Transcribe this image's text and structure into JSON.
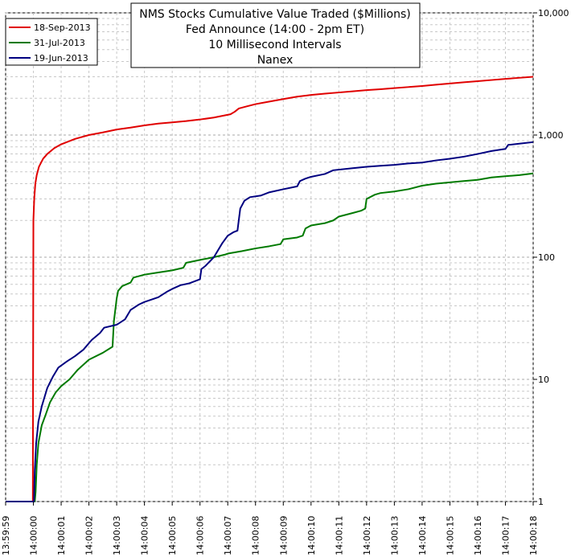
{
  "chart_data": {
    "type": "line",
    "title_lines": [
      "NMS Stocks Cumulative Value Traded ($Millions)",
      "Fed Announce (14:00 - 2pm ET)",
      "10 Millisecond Intervals",
      "Nanex"
    ],
    "y_scale": "log",
    "ylim": [
      1,
      10000
    ],
    "y_tick_labels": [
      "1",
      "10",
      "100",
      "1,000",
      "10,000"
    ],
    "y_tick_values": [
      1,
      10,
      100,
      1000,
      10000
    ],
    "x_tick_labels": [
      "13:59:59",
      "14:00:00",
      "14:00:01",
      "14:00:02",
      "14:00:03",
      "14:00:04",
      "14:00:05",
      "14:00:06",
      "14:00:07",
      "14:00:08",
      "14:00:09",
      "14:00:10",
      "14:00:11",
      "14:00:12",
      "14:00:13",
      "14:00:14",
      "14:00:15",
      "14:00:16",
      "14:00:17",
      "14:00:18"
    ],
    "x_tick_values": [
      -1,
      0,
      1,
      2,
      3,
      4,
      5,
      6,
      7,
      8,
      9,
      10,
      11,
      12,
      13,
      14,
      15,
      16,
      17,
      18
    ],
    "xlim": [
      -1,
      18
    ],
    "grid": true,
    "legend_position": "top-left",
    "series": [
      {
        "name": "18-Sep-2013",
        "color": "#e00000",
        "points": [
          [
            -1,
            1
          ],
          [
            -0.02,
            1
          ],
          [
            0,
            200
          ],
          [
            0.03,
            300
          ],
          [
            0.07,
            400
          ],
          [
            0.12,
            470
          ],
          [
            0.2,
            550
          ],
          [
            0.35,
            640
          ],
          [
            0.5,
            700
          ],
          [
            0.75,
            780
          ],
          [
            1,
            840
          ],
          [
            1.5,
            930
          ],
          [
            2,
            1000
          ],
          [
            2.5,
            1050
          ],
          [
            3,
            1110
          ],
          [
            3.5,
            1150
          ],
          [
            4,
            1200
          ],
          [
            4.5,
            1240
          ],
          [
            5,
            1270
          ],
          [
            5.5,
            1300
          ],
          [
            6,
            1340
          ],
          [
            6.5,
            1390
          ],
          [
            6.9,
            1450
          ],
          [
            7.1,
            1480
          ],
          [
            7.25,
            1550
          ],
          [
            7.4,
            1650
          ],
          [
            7.7,
            1720
          ],
          [
            8,
            1790
          ],
          [
            8.5,
            1880
          ],
          [
            9,
            1970
          ],
          [
            9.5,
            2060
          ],
          [
            10,
            2130
          ],
          [
            10.5,
            2180
          ],
          [
            11,
            2230
          ],
          [
            11.5,
            2280
          ],
          [
            12,
            2330
          ],
          [
            12.5,
            2370
          ],
          [
            13,
            2420
          ],
          [
            13.5,
            2470
          ],
          [
            14,
            2520
          ],
          [
            14.5,
            2580
          ],
          [
            15,
            2640
          ],
          [
            15.5,
            2700
          ],
          [
            16,
            2760
          ],
          [
            16.5,
            2820
          ],
          [
            17,
            2880
          ],
          [
            17.5,
            2940
          ],
          [
            18,
            3000
          ]
        ]
      },
      {
        "name": "31-Jul-2013",
        "color": "#007a00",
        "points": [
          [
            -1,
            1
          ],
          [
            0.05,
            1
          ],
          [
            0.08,
            1.2
          ],
          [
            0.12,
            2
          ],
          [
            0.18,
            3
          ],
          [
            0.3,
            4.2
          ],
          [
            0.45,
            5.2
          ],
          [
            0.6,
            6.5
          ],
          [
            0.8,
            7.8
          ],
          [
            1,
            8.8
          ],
          [
            1.3,
            10
          ],
          [
            1.6,
            12
          ],
          [
            2,
            14.5
          ],
          [
            2.5,
            16.5
          ],
          [
            2.85,
            18.5
          ],
          [
            2.9,
            30
          ],
          [
            3,
            46
          ],
          [
            3.05,
            53
          ],
          [
            3.2,
            58
          ],
          [
            3.5,
            62
          ],
          [
            3.6,
            68
          ],
          [
            4,
            72
          ],
          [
            4.5,
            75
          ],
          [
            5,
            78
          ],
          [
            5.4,
            82
          ],
          [
            5.5,
            90
          ],
          [
            6,
            95
          ],
          [
            6.5,
            100
          ],
          [
            6.9,
            105
          ],
          [
            7,
            107
          ],
          [
            7.5,
            112
          ],
          [
            8,
            118
          ],
          [
            8.5,
            123
          ],
          [
            8.9,
            128
          ],
          [
            9,
            140
          ],
          [
            9.5,
            145
          ],
          [
            9.7,
            150
          ],
          [
            9.8,
            172
          ],
          [
            10,
            182
          ],
          [
            10.5,
            190
          ],
          [
            10.8,
            200
          ],
          [
            11,
            215
          ],
          [
            11.5,
            230
          ],
          [
            11.8,
            240
          ],
          [
            11.95,
            250
          ],
          [
            12,
            300
          ],
          [
            12.3,
            325
          ],
          [
            12.5,
            335
          ],
          [
            13,
            345
          ],
          [
            13.5,
            360
          ],
          [
            14,
            385
          ],
          [
            14.5,
            400
          ],
          [
            15,
            410
          ],
          [
            15.5,
            420
          ],
          [
            16,
            430
          ],
          [
            16.5,
            450
          ],
          [
            17,
            460
          ],
          [
            17.5,
            470
          ],
          [
            18,
            485
          ]
        ]
      },
      {
        "name": "19-Jun-2013",
        "color": "#000080",
        "points": [
          [
            -1,
            1
          ],
          [
            0.02,
            1
          ],
          [
            0.05,
            1.8
          ],
          [
            0.1,
            3
          ],
          [
            0.18,
            4.5
          ],
          [
            0.3,
            6
          ],
          [
            0.5,
            8.5
          ],
          [
            0.7,
            10.5
          ],
          [
            0.9,
            12.5
          ],
          [
            1.2,
            14
          ],
          [
            1.5,
            15.5
          ],
          [
            1.8,
            17.5
          ],
          [
            2.1,
            21
          ],
          [
            2.4,
            24
          ],
          [
            2.55,
            26.5
          ],
          [
            3,
            28
          ],
          [
            3.3,
            31
          ],
          [
            3.5,
            37
          ],
          [
            3.8,
            41
          ],
          [
            4,
            43
          ],
          [
            4.5,
            47
          ],
          [
            4.8,
            52
          ],
          [
            5,
            55
          ],
          [
            5.3,
            59
          ],
          [
            5.6,
            61
          ],
          [
            6,
            66
          ],
          [
            6.05,
            80
          ],
          [
            6.2,
            85
          ],
          [
            6.5,
            100
          ],
          [
            6.8,
            130
          ],
          [
            7,
            150
          ],
          [
            7.2,
            160
          ],
          [
            7.35,
            165
          ],
          [
            7.45,
            250
          ],
          [
            7.6,
            290
          ],
          [
            7.8,
            310
          ],
          [
            8.2,
            320
          ],
          [
            8.5,
            340
          ],
          [
            9,
            360
          ],
          [
            9.5,
            380
          ],
          [
            9.6,
            420
          ],
          [
            9.8,
            440
          ],
          [
            10,
            455
          ],
          [
            10.5,
            480
          ],
          [
            10.8,
            515
          ],
          [
            11.5,
            535
          ],
          [
            12,
            550
          ],
          [
            12.5,
            560
          ],
          [
            13,
            570
          ],
          [
            13.5,
            585
          ],
          [
            14,
            595
          ],
          [
            14.5,
            620
          ],
          [
            15,
            640
          ],
          [
            15.5,
            665
          ],
          [
            16,
            700
          ],
          [
            16.5,
            740
          ],
          [
            17,
            770
          ],
          [
            17.1,
            830
          ],
          [
            17.5,
            850
          ],
          [
            18,
            875
          ]
        ]
      }
    ]
  }
}
